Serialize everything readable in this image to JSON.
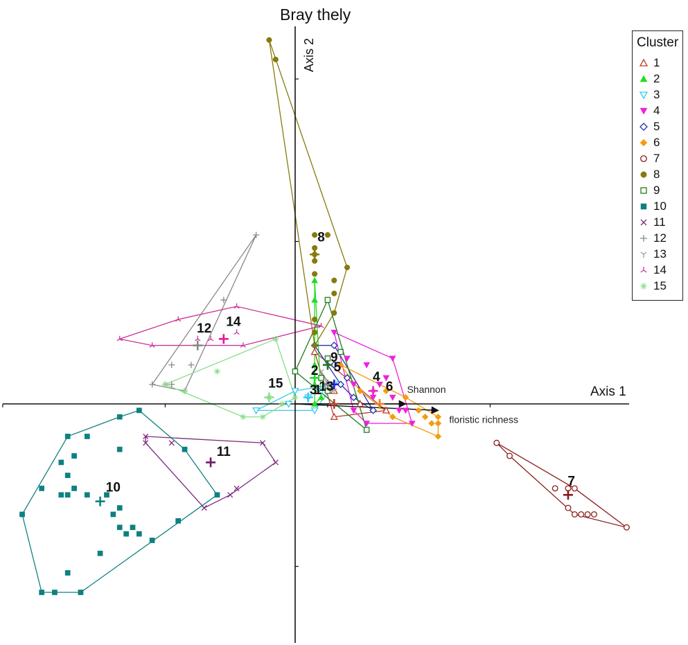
{
  "chart_data": {
    "type": "scatter",
    "title": "Bray thely",
    "xlabel": "Axis 1",
    "ylabel": "Axis 2",
    "legend": {
      "title": "Cluster",
      "placement": "top-right"
    },
    "clusters": [
      {
        "label": "1",
        "marker": "triangle-open",
        "color": "#c0392b",
        "points": [
          [
            0.03,
            0.08
          ],
          [
            0.06,
            0.02
          ],
          [
            0.1,
            0.0
          ],
          [
            0.14,
            -0.01
          ],
          [
            0.06,
            -0.02
          ]
        ],
        "centroid": [
          0.06,
          0.0
        ],
        "centroid_color": "#c0392b"
      },
      {
        "label": "2",
        "marker": "triangle-filled",
        "color": "#22dd22",
        "points": [
          [
            0.03,
            0.19
          ],
          [
            0.03,
            0.16
          ],
          [
            0.03,
            0.06
          ],
          [
            0.03,
            0.03
          ],
          [
            0.04,
            0.01
          ],
          [
            0.03,
            0.0
          ]
        ],
        "centroid": [
          0.03,
          0.04
        ],
        "centroid_color": "#22dd22"
      },
      {
        "label": "3",
        "marker": "triangle-down-open",
        "color": "#33ccee",
        "points": [
          [
            -0.06,
            -0.01
          ],
          [
            -0.01,
            0.0
          ],
          [
            0.02,
            0.01
          ],
          [
            0.04,
            0.02
          ],
          [
            0.06,
            0.03
          ],
          [
            0.03,
            -0.01
          ],
          [
            0.0,
            0.02
          ]
        ],
        "centroid": [
          0.02,
          0.01
        ],
        "centroid_color": "#33ccee"
      },
      {
        "label": "4",
        "marker": "triangle-down-filled",
        "color": "#ee22dd",
        "points": [
          [
            0.06,
            0.11
          ],
          [
            0.08,
            0.07
          ],
          [
            0.09,
            0.03
          ],
          [
            0.09,
            -0.01
          ],
          [
            0.11,
            -0.03
          ],
          [
            0.12,
            0.01
          ],
          [
            0.13,
            0.03
          ],
          [
            0.14,
            0.04
          ],
          [
            0.15,
            0.01
          ],
          [
            0.16,
            -0.01
          ],
          [
            0.17,
            -0.01
          ],
          [
            0.18,
            -0.03
          ],
          [
            0.15,
            0.07
          ],
          [
            0.11,
            0.06
          ]
        ],
        "centroid": [
          0.12,
          0.02
        ],
        "centroid_color": "#ee22dd"
      },
      {
        "label": "5",
        "marker": "diamond-open",
        "color": "#2233aa",
        "points": [
          [
            0.03,
            0.09
          ],
          [
            0.06,
            0.09
          ],
          [
            0.07,
            0.03
          ],
          [
            0.08,
            0.04
          ],
          [
            0.09,
            0.01
          ],
          [
            0.12,
            -0.01
          ],
          [
            0.06,
            0.06
          ]
        ],
        "centroid": [
          0.06,
          0.03
        ],
        "centroid_color": "#2222cc"
      },
      {
        "label": "6",
        "marker": "diamond-filled",
        "color": "#f39c12",
        "points": [
          [
            0.07,
            0.06
          ],
          [
            0.1,
            0.02
          ],
          [
            0.12,
            0.02
          ],
          [
            0.14,
            0.02
          ],
          [
            0.17,
            0.01
          ],
          [
            0.19,
            -0.01
          ],
          [
            0.2,
            -0.02
          ],
          [
            0.21,
            -0.03
          ],
          [
            0.22,
            -0.03
          ],
          [
            0.22,
            -0.02
          ],
          [
            0.22,
            -0.05
          ],
          [
            0.15,
            -0.02
          ]
        ],
        "centroid": [
          0.13,
          0.0
        ],
        "centroid_color": "#e67e22"
      },
      {
        "label": "7",
        "marker": "circle-open",
        "color": "#8b1a1a",
        "points": [
          [
            0.31,
            -0.06
          ],
          [
            0.33,
            -0.08
          ],
          [
            0.4,
            -0.13
          ],
          [
            0.42,
            -0.13
          ],
          [
            0.43,
            -0.13
          ],
          [
            0.42,
            -0.16
          ],
          [
            0.43,
            -0.17
          ],
          [
            0.44,
            -0.17
          ],
          [
            0.45,
            -0.17
          ],
          [
            0.46,
            -0.17
          ],
          [
            0.51,
            -0.19
          ]
        ],
        "centroid": [
          0.42,
          -0.14
        ],
        "centroid_color": "#8b1a1a"
      },
      {
        "label": "8",
        "marker": "circle-filled",
        "color": "#857b0c",
        "points": [
          [
            -0.04,
            0.56
          ],
          [
            -0.03,
            0.53
          ],
          [
            0.03,
            0.26
          ],
          [
            0.03,
            0.24
          ],
          [
            0.03,
            0.23
          ],
          [
            0.03,
            0.22
          ],
          [
            0.03,
            0.2
          ],
          [
            0.05,
            0.26
          ],
          [
            0.08,
            0.21
          ],
          [
            0.06,
            0.19
          ],
          [
            0.06,
            0.17
          ],
          [
            0.06,
            0.14
          ],
          [
            0.03,
            0.13
          ],
          [
            0.03,
            0.11
          ],
          [
            0.03,
            0.09
          ]
        ],
        "centroid": [
          0.03,
          0.23
        ],
        "centroid_color": "#857b0c"
      },
      {
        "label": "9",
        "marker": "square-open",
        "color": "#1e7a1e",
        "points": [
          [
            0.0,
            0.05
          ],
          [
            0.05,
            0.16
          ],
          [
            0.07,
            0.08
          ],
          [
            0.05,
            0.07
          ],
          [
            0.11,
            -0.04
          ],
          [
            0.04,
            0.04
          ],
          [
            0.05,
            0.02
          ]
        ],
        "centroid": [
          0.05,
          0.06
        ],
        "centroid_color": "#1e7a1e"
      },
      {
        "label": "10",
        "marker": "square-filled",
        "color": "#0e8080",
        "points": [
          [
            -0.27,
            -0.02
          ],
          [
            -0.24,
            -0.01
          ],
          [
            -0.35,
            -0.05
          ],
          [
            -0.32,
            -0.05
          ],
          [
            -0.27,
            -0.07
          ],
          [
            -0.36,
            -0.09
          ],
          [
            -0.34,
            -0.08
          ],
          [
            -0.35,
            -0.11
          ],
          [
            -0.39,
            -0.13
          ],
          [
            -0.34,
            -0.13
          ],
          [
            -0.35,
            -0.14
          ],
          [
            -0.36,
            -0.14
          ],
          [
            -0.32,
            -0.14
          ],
          [
            -0.29,
            -0.14
          ],
          [
            -0.27,
            -0.16
          ],
          [
            -0.28,
            -0.17
          ],
          [
            -0.27,
            -0.19
          ],
          [
            -0.25,
            -0.19
          ],
          [
            -0.24,
            -0.2
          ],
          [
            -0.26,
            -0.2
          ],
          [
            -0.22,
            -0.21
          ],
          [
            -0.18,
            -0.18
          ],
          [
            -0.17,
            -0.07
          ],
          [
            -0.12,
            -0.14
          ],
          [
            -0.3,
            -0.23
          ],
          [
            -0.35,
            -0.26
          ],
          [
            -0.33,
            -0.29
          ],
          [
            -0.37,
            -0.29
          ],
          [
            -0.39,
            -0.29
          ],
          [
            -0.42,
            -0.17
          ]
        ],
        "centroid": [
          -0.3,
          -0.15
        ],
        "centroid_color": "#0e8080"
      },
      {
        "label": "11",
        "marker": "x",
        "color": "#7b2a7b",
        "points": [
          [
            -0.23,
            -0.05
          ],
          [
            -0.23,
            -0.06
          ],
          [
            -0.19,
            -0.06
          ],
          [
            -0.05,
            -0.06
          ],
          [
            -0.03,
            -0.09
          ],
          [
            -0.09,
            -0.13
          ],
          [
            -0.1,
            -0.14
          ],
          [
            -0.14,
            -0.16
          ]
        ],
        "centroid": [
          -0.13,
          -0.09
        ],
        "centroid_color": "#6a1b6a"
      },
      {
        "label": "12",
        "marker": "plus",
        "color": "#888888",
        "points": [
          [
            -0.06,
            0.26
          ],
          [
            -0.11,
            0.16
          ],
          [
            -0.15,
            0.09
          ],
          [
            -0.16,
            0.06
          ],
          [
            -0.19,
            0.03
          ],
          [
            -0.2,
            0.03
          ],
          [
            -0.22,
            0.03
          ],
          [
            -0.17,
            0.02
          ],
          [
            -0.19,
            0.06
          ]
        ],
        "centroid": [
          -0.15,
          0.09
        ],
        "centroid_color": "#888888"
      },
      {
        "label": "13",
        "marker": "y",
        "color": "#999999",
        "points": [
          [
            0.04,
            0.05
          ],
          [
            0.05,
            0.03
          ],
          [
            0.06,
            0.02
          ]
        ],
        "centroid": [
          0.05,
          0.03
        ],
        "centroid_color": "#888888"
      },
      {
        "label": "14",
        "marker": "tri-star",
        "color": "#cc3399",
        "points": [
          [
            -0.27,
            0.1
          ],
          [
            -0.22,
            0.09
          ],
          [
            -0.18,
            0.13
          ],
          [
            -0.15,
            0.1
          ],
          [
            -0.13,
            0.1
          ],
          [
            -0.09,
            0.15
          ],
          [
            -0.09,
            0.11
          ],
          [
            -0.08,
            0.09
          ],
          [
            0.04,
            0.12
          ]
        ],
        "centroid": [
          -0.11,
          0.1
        ],
        "centroid_color": "#ee1199"
      },
      {
        "label": "15",
        "marker": "asterisk",
        "color": "#88dd88",
        "points": [
          [
            -0.03,
            0.1
          ],
          [
            -0.12,
            0.05
          ],
          [
            -0.2,
            0.03
          ],
          [
            -0.17,
            0.02
          ],
          [
            -0.08,
            -0.02
          ],
          [
            -0.05,
            -0.02
          ],
          [
            -0.04,
            0.01
          ],
          [
            -0.02,
            0.0
          ],
          [
            0.0,
            0.01
          ]
        ],
        "centroid": [
          -0.04,
          0.01
        ],
        "centroid_color": "#88dd88"
      }
    ],
    "cluster_labels": [
      {
        "text": "1",
        "x": 0.035,
        "y": 0.015
      },
      {
        "text": "2",
        "x": 0.03,
        "y": 0.045
      },
      {
        "text": "3",
        "x": 0.028,
        "y": 0.015
      },
      {
        "text": "4",
        "x": 0.125,
        "y": 0.035
      },
      {
        "text": "5",
        "x": 0.065,
        "y": 0.05
      },
      {
        "text": "6",
        "x": 0.145,
        "y": 0.02
      },
      {
        "text": "7",
        "x": 0.425,
        "y": -0.125
      },
      {
        "text": "8",
        "x": 0.04,
        "y": 0.25
      },
      {
        "text": "9",
        "x": 0.06,
        "y": 0.065
      },
      {
        "text": "10",
        "x": -0.28,
        "y": -0.135
      },
      {
        "text": "11",
        "x": -0.11,
        "y": -0.08
      },
      {
        "text": "12",
        "x": -0.14,
        "y": 0.11
      },
      {
        "text": "13",
        "x": 0.048,
        "y": 0.02
      },
      {
        "text": "14",
        "x": -0.095,
        "y": 0.12
      },
      {
        "text": "15",
        "x": -0.03,
        "y": 0.025
      }
    ],
    "vectors": [
      {
        "label": "Shannon",
        "x": 0.17,
        "y": 0.0
      },
      {
        "label": "floristic richness",
        "x": 0.22,
        "y": -0.01
      }
    ],
    "xlim": [
      -0.46,
      0.52
    ],
    "ylim": [
      -0.31,
      0.57
    ],
    "grid": false
  }
}
